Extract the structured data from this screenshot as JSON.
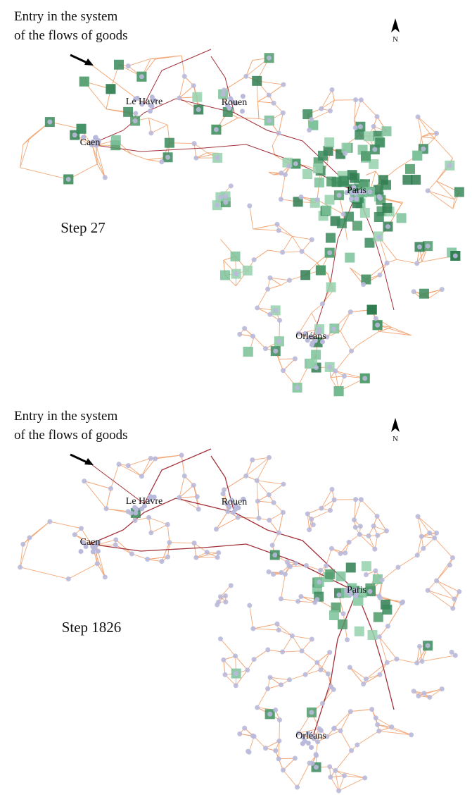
{
  "panels": [
    {
      "annotation": [
        "Entry in the system",
        "of the flows of goods"
      ],
      "north": "N",
      "cities": [
        "Le Havre",
        "Rouen",
        "Caen",
        "Paris",
        "Orléans"
      ],
      "step": "Step 27"
    },
    {
      "annotation": [
        "Entry in the system",
        "of the flows of goods"
      ],
      "north": "N",
      "cities": [
        "Le Havre",
        "Rouen",
        "Caen",
        "Paris",
        "Orléans"
      ],
      "step": "Step 1826"
    }
  ]
}
